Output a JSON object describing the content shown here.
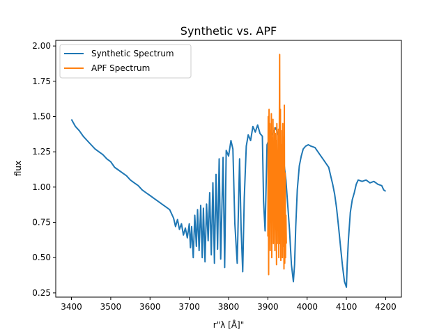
{
  "chart_data": {
    "type": "line",
    "title": "Synthetic vs. APF",
    "xlabel": "r\"λ [Å]\"",
    "ylabel": "flux",
    "xlim": [
      3360,
      4240
    ],
    "ylim": [
      0.22,
      2.04
    ],
    "xticks": [
      3400,
      3500,
      3600,
      3700,
      3800,
      3900,
      4000,
      4100,
      4200
    ],
    "yticks": [
      0.25,
      0.5,
      0.75,
      1.0,
      1.25,
      1.5,
      1.75,
      2.0
    ],
    "xtick_labels": [
      "3400",
      "3500",
      "3600",
      "3700",
      "3800",
      "3900",
      "4000",
      "4100",
      "4200"
    ],
    "ytick_labels": [
      "0.25",
      "0.50",
      "0.75",
      "1.00",
      "1.25",
      "1.50",
      "1.75",
      "2.00"
    ],
    "grid": false,
    "legend": {
      "placement": "upper-left"
    },
    "series": [
      {
        "name": "Synthetic Spectrum",
        "color": "#1f77b4",
        "x": [
          3400,
          3410,
          3420,
          3430,
          3440,
          3450,
          3460,
          3470,
          3480,
          3490,
          3500,
          3510,
          3520,
          3530,
          3540,
          3550,
          3560,
          3570,
          3580,
          3590,
          3600,
          3610,
          3620,
          3630,
          3640,
          3650,
          3660,
          3665,
          3670,
          3675,
          3680,
          3685,
          3690,
          3695,
          3700,
          3703,
          3706,
          3710,
          3714,
          3718,
          3721,
          3725,
          3729,
          3733,
          3736,
          3740,
          3744,
          3748,
          3752,
          3756,
          3760,
          3764,
          3768,
          3772,
          3776,
          3780,
          3786,
          3790,
          3794,
          3800,
          3806,
          3811,
          3816,
          3822,
          3828,
          3832,
          3836,
          3840,
          3845,
          3850,
          3856,
          3862,
          3868,
          3874,
          3880,
          3886,
          3889,
          3893,
          3898,
          3905,
          3912,
          3920,
          3928,
          3934,
          3938,
          3942,
          3946,
          3950,
          3955,
          3960,
          3965,
          3968,
          3971,
          3975,
          3980,
          3985,
          3990,
          3996,
          4003,
          4010,
          4020,
          4030,
          4040,
          4050,
          4055,
          4060,
          4065,
          4070,
          4075,
          4080,
          4085,
          4090,
          4095,
          4100,
          4102,
          4105,
          4110,
          4115,
          4120,
          4125,
          4130,
          4140,
          4150,
          4160,
          4170,
          4180,
          4190,
          4195,
          4200
        ],
        "y": [
          1.48,
          1.43,
          1.4,
          1.36,
          1.33,
          1.3,
          1.27,
          1.25,
          1.23,
          1.2,
          1.18,
          1.14,
          1.12,
          1.1,
          1.08,
          1.05,
          1.03,
          1.01,
          0.98,
          0.96,
          0.94,
          0.92,
          0.9,
          0.88,
          0.86,
          0.84,
          0.78,
          0.72,
          0.77,
          0.7,
          0.74,
          0.66,
          0.71,
          0.64,
          0.74,
          0.57,
          0.72,
          0.5,
          0.8,
          0.58,
          0.84,
          0.55,
          0.87,
          0.5,
          0.85,
          0.47,
          0.88,
          0.62,
          0.96,
          0.52,
          1.03,
          0.46,
          1.09,
          0.56,
          1.2,
          0.49,
          1.21,
          0.43,
          1.26,
          1.22,
          1.33,
          1.27,
          0.74,
          0.46,
          1.2,
          0.7,
          0.4,
          0.92,
          1.29,
          1.37,
          1.33,
          1.43,
          1.39,
          1.44,
          1.38,
          1.36,
          0.9,
          0.69,
          1.3,
          1.35,
          1.38,
          1.42,
          1.36,
          1.3,
          1.2,
          1.15,
          1.05,
          0.9,
          0.7,
          0.45,
          0.33,
          0.45,
          0.72,
          0.98,
          1.15,
          1.22,
          1.27,
          1.29,
          1.3,
          1.29,
          1.28,
          1.24,
          1.2,
          1.16,
          1.14,
          1.08,
          1.02,
          0.95,
          0.85,
          0.72,
          0.58,
          0.44,
          0.33,
          0.29,
          0.45,
          0.62,
          0.82,
          0.91,
          0.96,
          1.02,
          1.05,
          1.04,
          1.05,
          1.03,
          1.04,
          1.02,
          1.01,
          0.98,
          0.97
        ]
      },
      {
        "name": "APF Spectrum",
        "color": "#ff7f0e",
        "x": [
          3900,
          3901,
          3902,
          3903,
          3904,
          3905,
          3906,
          3907,
          3908,
          3909,
          3910,
          3911,
          3912,
          3913,
          3914,
          3915,
          3916,
          3917,
          3918,
          3919,
          3920,
          3921,
          3922,
          3923,
          3924,
          3925,
          3926,
          3927,
          3928,
          3929,
          3930,
          3931,
          3932,
          3933,
          3934,
          3935,
          3936,
          3937,
          3938,
          3939,
          3940,
          3941,
          3942,
          3943,
          3944,
          3945,
          3946,
          3947
        ],
        "y": [
          0.65,
          1.5,
          0.38,
          1.55,
          0.9,
          1.45,
          0.55,
          1.4,
          0.75,
          1.52,
          0.5,
          1.35,
          0.8,
          1.48,
          0.6,
          1.3,
          0.9,
          1.42,
          0.55,
          1.38,
          0.7,
          1.33,
          0.45,
          1.45,
          0.6,
          1.25,
          0.85,
          1.41,
          0.5,
          1.3,
          1.94,
          0.6,
          1.55,
          0.48,
          1.4,
          0.75,
          1.3,
          0.5,
          1.45,
          0.58,
          1.35,
          0.42,
          1.58,
          0.46,
          1.1,
          0.5,
          0.8,
          0.6
        ]
      }
    ]
  }
}
